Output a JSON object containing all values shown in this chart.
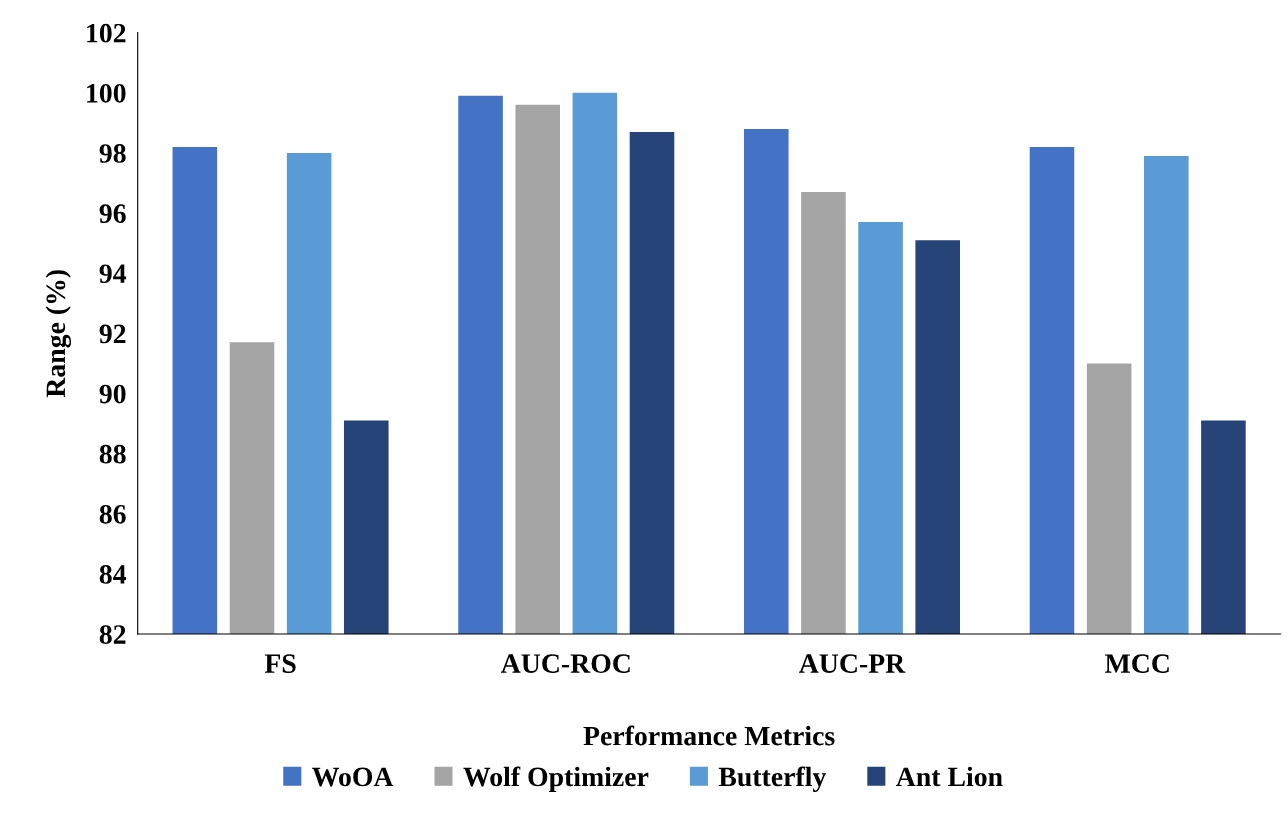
{
  "chart_data": {
    "type": "bar",
    "xlabel": "Performance Metrics",
    "ylabel": "Range (%)",
    "categories": [
      "FS",
      "AUC-ROC",
      "AUC-PR",
      "MCC"
    ],
    "series": [
      {
        "name": "WoOA",
        "color": "#4472c4",
        "values": [
          98.2,
          99.9,
          98.8,
          98.2
        ]
      },
      {
        "name": "Wolf Optimizer",
        "color": "#a5a5a5",
        "values": [
          91.7,
          99.6,
          96.7,
          91.0
        ]
      },
      {
        "name": "Butterfly",
        "color": "#5b9bd5",
        "values": [
          98.0,
          100.0,
          95.7,
          97.9
        ]
      },
      {
        "name": "Ant Lion",
        "color": "#264478",
        "values": [
          89.1,
          98.7,
          95.1,
          89.1
        ]
      }
    ],
    "ylim": [
      82,
      102
    ],
    "yticks": [
      82,
      84,
      86,
      88,
      90,
      92,
      94,
      96,
      98,
      100,
      102
    ],
    "grid": false,
    "legend": "bottom"
  }
}
